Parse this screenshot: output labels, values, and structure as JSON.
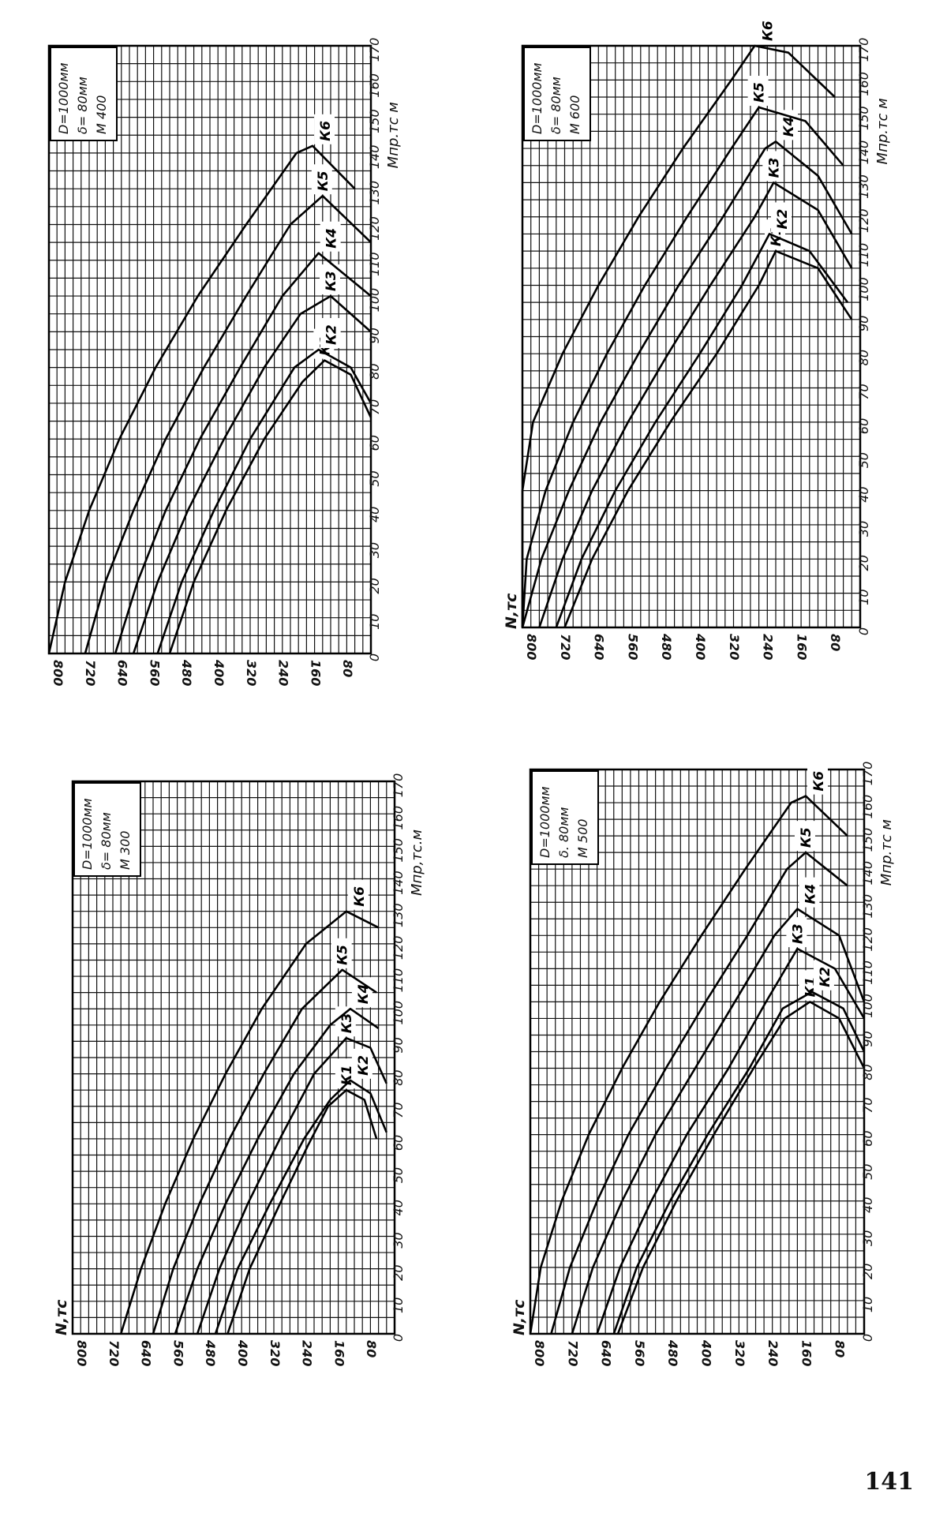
{
  "page_number": "141",
  "chart_data": [
    {
      "type": "line",
      "title": "",
      "inset": [
        "D=1000мм",
        "δ= 80мм",
        "М 300"
      ],
      "ylabel": "N,тс",
      "xlabel": "Мпр,тс.м",
      "x_ticks": [
        0,
        10,
        20,
        30,
        40,
        50,
        60,
        70,
        80,
        90,
        100,
        110,
        120,
        130,
        140,
        150,
        160,
        170
      ],
      "y_ticks": [
        80,
        160,
        240,
        320,
        400,
        480,
        560,
        640,
        720,
        800
      ],
      "xlim": [
        0,
        170
      ],
      "ylim": [
        0,
        800
      ],
      "grid": true,
      "series": [
        {
          "name": "К1",
          "values": [
            [
              0,
              415
            ],
            [
              20,
              360
            ],
            [
              40,
              285
            ],
            [
              58,
              215
            ],
            [
              70,
              165
            ],
            [
              75,
              120
            ],
            [
              72,
              75
            ],
            [
              60,
              45
            ]
          ]
        },
        {
          "name": "К2",
          "values": [
            [
              0,
              445
            ],
            [
              20,
              390
            ],
            [
              40,
              310
            ],
            [
              60,
              225
            ],
            [
              72,
              160
            ],
            [
              78,
              110
            ],
            [
              74,
              60
            ],
            [
              62,
              20
            ]
          ]
        },
        {
          "name": "К3",
          "values": [
            [
              0,
              490
            ],
            [
              20,
              435
            ],
            [
              40,
              365
            ],
            [
              60,
              285
            ],
            [
              80,
              200
            ],
            [
              91,
              120
            ],
            [
              88,
              60
            ],
            [
              77,
              20
            ]
          ]
        },
        {
          "name": "К4",
          "values": [
            [
              0,
              545
            ],
            [
              20,
              490
            ],
            [
              40,
              420
            ],
            [
              60,
              340
            ],
            [
              80,
              250
            ],
            [
              95,
              160
            ],
            [
              100,
              110
            ],
            [
              94,
              40
            ]
          ]
        },
        {
          "name": "К5",
          "values": [
            [
              0,
              600
            ],
            [
              20,
              550
            ],
            [
              40,
              485
            ],
            [
              60,
              410
            ],
            [
              80,
              325
            ],
            [
              100,
              230
            ],
            [
              112,
              130
            ],
            [
              105,
              45
            ]
          ]
        },
        {
          "name": "К6",
          "values": [
            [
              0,
              680
            ],
            [
              20,
              630
            ],
            [
              40,
              570
            ],
            [
              60,
              500
            ],
            [
              80,
              420
            ],
            [
              100,
              330
            ],
            [
              120,
              220
            ],
            [
              130,
              120
            ],
            [
              125,
              40
            ]
          ]
        }
      ]
    },
    {
      "type": "line",
      "title": "",
      "inset": [
        "D=1000мм",
        "δ= 80мм",
        "М 400"
      ],
      "ylabel": "",
      "xlabel": "Мпр.тс м",
      "x_ticks": [
        0,
        10,
        20,
        30,
        40,
        50,
        60,
        70,
        80,
        90,
        100,
        110,
        120,
        130,
        140,
        150,
        160,
        170
      ],
      "y_ticks": [
        80,
        160,
        240,
        320,
        400,
        480,
        560,
        640,
        720,
        800
      ],
      "xlim": [
        0,
        170
      ],
      "ylim": [
        0,
        800
      ],
      "grid": true,
      "series": [
        {
          "name": "К1",
          "values": [
            [
              0,
              500
            ],
            [
              20,
              440
            ],
            [
              40,
              360
            ],
            [
              60,
              265
            ],
            [
              76,
              170
            ],
            [
              82,
              115
            ],
            [
              78,
              50
            ],
            [
              66,
              0
            ]
          ]
        },
        {
          "name": "К2",
          "values": [
            [
              0,
              530
            ],
            [
              20,
              470
            ],
            [
              40,
              390
            ],
            [
              60,
              300
            ],
            [
              80,
              190
            ],
            [
              85,
              130
            ],
            [
              80,
              50
            ],
            [
              70,
              0
            ]
          ]
        },
        {
          "name": "К3",
          "values": [
            [
              0,
              590
            ],
            [
              20,
              530
            ],
            [
              40,
              455
            ],
            [
              60,
              365
            ],
            [
              80,
              265
            ],
            [
              95,
              175
            ],
            [
              100,
              100
            ],
            [
              90,
              0
            ]
          ]
        },
        {
          "name": "К4",
          "values": [
            [
              0,
              635
            ],
            [
              20,
              580
            ],
            [
              40,
              510
            ],
            [
              60,
              425
            ],
            [
              80,
              325
            ],
            [
              100,
              220
            ],
            [
              112,
              130
            ],
            [
              100,
              0
            ]
          ]
        },
        {
          "name": "К5",
          "values": [
            [
              0,
              710
            ],
            [
              20,
              660
            ],
            [
              40,
              590
            ],
            [
              60,
              510
            ],
            [
              80,
              415
            ],
            [
              100,
              310
            ],
            [
              120,
              200
            ],
            [
              128,
              120
            ],
            [
              115,
              0
            ]
          ]
        },
        {
          "name": "К6",
          "values": [
            [
              0,
              800
            ],
            [
              20,
              760
            ],
            [
              40,
              700
            ],
            [
              60,
              625
            ],
            [
              80,
              535
            ],
            [
              100,
              430
            ],
            [
              120,
              310
            ],
            [
              140,
              185
            ],
            [
              142,
              145
            ],
            [
              130,
              40
            ]
          ]
        }
      ]
    },
    {
      "type": "line",
      "title": "",
      "inset": [
        "D=1000мм",
        "δ. 80мм",
        "М 500"
      ],
      "ylabel": "N,тс",
      "xlabel": "Мпр.тс м",
      "x_ticks": [
        0,
        10,
        20,
        30,
        40,
        50,
        60,
        70,
        80,
        90,
        100,
        110,
        120,
        130,
        140,
        150,
        160,
        170
      ],
      "y_ticks": [
        80,
        160,
        240,
        320,
        400,
        480,
        560,
        640,
        720,
        800
      ],
      "xlim": [
        0,
        170
      ],
      "ylim": [
        0,
        800
      ],
      "grid": true,
      "series": [
        {
          "name": "К1",
          "values": [
            [
              0,
              590
            ],
            [
              20,
              530
            ],
            [
              40,
              450
            ],
            [
              60,
              360
            ],
            [
              80,
              265
            ],
            [
              95,
              190
            ],
            [
              100,
              130
            ],
            [
              95,
              60
            ],
            [
              80,
              0
            ]
          ]
        },
        {
          "name": "К2",
          "values": [
            [
              0,
              600
            ],
            [
              20,
              545
            ],
            [
              40,
              465
            ],
            [
              60,
              375
            ],
            [
              80,
              275
            ],
            [
              98,
              195
            ],
            [
              103,
              125
            ],
            [
              98,
              50
            ],
            [
              85,
              0
            ]
          ]
        },
        {
          "name": "К3",
          "values": [
            [
              0,
              640
            ],
            [
              20,
              585
            ],
            [
              40,
              510
            ],
            [
              60,
              425
            ],
            [
              80,
              325
            ],
            [
              100,
              235
            ],
            [
              116,
              160
            ],
            [
              110,
              70
            ],
            [
              95,
              0
            ]
          ]
        },
        {
          "name": "К4",
          "values": [
            [
              0,
              700
            ],
            [
              20,
              650
            ],
            [
              40,
              580
            ],
            [
              60,
              500
            ],
            [
              80,
              405
            ],
            [
              100,
              310
            ],
            [
              120,
              215
            ],
            [
              128,
              160
            ],
            [
              120,
              60
            ],
            [
              100,
              0
            ]
          ]
        },
        {
          "name": "К5",
          "values": [
            [
              0,
              750
            ],
            [
              20,
              705
            ],
            [
              40,
              640
            ],
            [
              60,
              565
            ],
            [
              80,
              475
            ],
            [
              100,
              380
            ],
            [
              120,
              280
            ],
            [
              140,
              185
            ],
            [
              145,
              140
            ],
            [
              135,
              40
            ]
          ]
        },
        {
          "name": "К6",
          "values": [
            [
              0,
              800
            ],
            [
              20,
              775
            ],
            [
              40,
              725
            ],
            [
              60,
              660
            ],
            [
              80,
              580
            ],
            [
              100,
              490
            ],
            [
              120,
              390
            ],
            [
              140,
              285
            ],
            [
              160,
              175
            ],
            [
              162,
              140
            ],
            [
              150,
              40
            ]
          ]
        }
      ]
    },
    {
      "type": "line",
      "title": "",
      "inset": [
        "D=1000мм",
        "δ= 80мм",
        "М 600"
      ],
      "ylabel": "N,тс",
      "xlabel": "Мпр.тс м",
      "x_ticks": [
        0,
        10,
        20,
        30,
        40,
        50,
        60,
        70,
        80,
        90,
        100,
        110,
        120,
        130,
        140,
        150,
        160,
        170
      ],
      "y_ticks": [
        80,
        160,
        240,
        320,
        400,
        480,
        560,
        640,
        720,
        800
      ],
      "xlim": [
        0,
        170
      ],
      "ylim": [
        0,
        800
      ],
      "grid": true,
      "series": [
        {
          "name": "К1",
          "values": [
            [
              0,
              700
            ],
            [
              20,
              635
            ],
            [
              40,
              550
            ],
            [
              60,
              450
            ],
            [
              80,
              340
            ],
            [
              100,
              240
            ],
            [
              110,
              200
            ],
            [
              105,
              100
            ],
            [
              90,
              20
            ]
          ]
        },
        {
          "name": "К2",
          "values": [
            [
              0,
              720
            ],
            [
              20,
              660
            ],
            [
              40,
              580
            ],
            [
              60,
              485
            ],
            [
              80,
              380
            ],
            [
              100,
              280
            ],
            [
              115,
              215
            ],
            [
              110,
              120
            ],
            [
              95,
              30
            ]
          ]
        },
        {
          "name": "К3",
          "values": [
            [
              0,
              760
            ],
            [
              20,
              705
            ],
            [
              40,
              635
            ],
            [
              60,
              550
            ],
            [
              80,
              455
            ],
            [
              100,
              355
            ],
            [
              120,
              250
            ],
            [
              130,
              205
            ],
            [
              122,
              100
            ],
            [
              105,
              20
            ]
          ]
        },
        {
          "name": "К4",
          "values": [
            [
              0,
              800
            ],
            [
              20,
              755
            ],
            [
              40,
              690
            ],
            [
              60,
              615
            ],
            [
              80,
              525
            ],
            [
              100,
              430
            ],
            [
              120,
              325
            ],
            [
              140,
              225
            ],
            [
              142,
              200
            ],
            [
              132,
              100
            ],
            [
              115,
              20
            ]
          ]
        },
        {
          "name": "К5",
          "values": [
            [
              0,
              800
            ],
            [
              20,
              790
            ],
            [
              40,
              745
            ],
            [
              60,
              680
            ],
            [
              80,
              600
            ],
            [
              100,
              510
            ],
            [
              120,
              410
            ],
            [
              140,
              305
            ],
            [
              152,
              240
            ],
            [
              148,
              130
            ],
            [
              135,
              40
            ]
          ]
        },
        {
          "name": "К6",
          "values": [
            [
              0,
              800
            ],
            [
              20,
              800
            ],
            [
              40,
              800
            ],
            [
              60,
              775
            ],
            [
              80,
              705
            ],
            [
              100,
              620
            ],
            [
              120,
              525
            ],
            [
              140,
              420
            ],
            [
              160,
              305
            ],
            [
              170,
              250
            ],
            [
              168,
              170
            ],
            [
              155,
              60
            ]
          ]
        }
      ]
    }
  ]
}
